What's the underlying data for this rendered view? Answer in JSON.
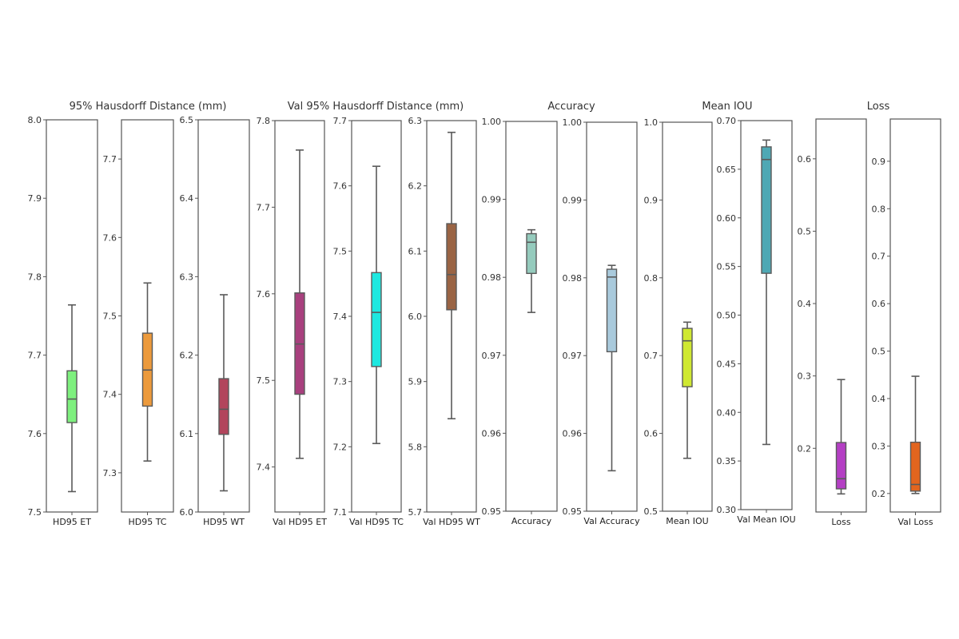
{
  "chart_data": {
    "type": "box",
    "groups": [
      {
        "title": "95% Hausdorff Distance (mm)",
        "panels": [
          0,
          1,
          2
        ]
      },
      {
        "title": "Val 95% Hausdorff Distance (mm)",
        "panels": [
          3,
          4,
          5
        ]
      },
      {
        "title": "Accuracy",
        "panels": [
          6,
          7
        ]
      },
      {
        "title": "Mean IOU",
        "panels": [
          8,
          9
        ]
      },
      {
        "title": "Loss",
        "panels": [
          10,
          11
        ]
      }
    ],
    "panels": [
      {
        "label": "HD95 ET",
        "color": "#7ef07e",
        "ylim": [
          7.5,
          8.0
        ],
        "ticks": [
          "7.5",
          "7.6",
          "7.7",
          "7.8",
          "7.9",
          "8.0"
        ],
        "stats": {
          "whislo": 7.526,
          "q1": 7.614,
          "median": 7.644,
          "q3": 7.68,
          "whishi": 7.764
        }
      },
      {
        "label": "HD95 TC",
        "color": "#ec9a3c",
        "ylim": [
          7.25,
          7.75
        ],
        "ticks": [
          "7.3",
          "7.4",
          "7.5",
          "7.6",
          "7.7"
        ],
        "stats": {
          "whislo": 7.315,
          "q1": 7.385,
          "median": 7.431,
          "q3": 7.478,
          "whishi": 7.542
        }
      },
      {
        "label": "HD95 WT",
        "color": "#b2455c",
        "ylim": [
          6.0,
          6.5
        ],
        "ticks": [
          "6.0",
          "6.1",
          "6.2",
          "6.3",
          "6.4",
          "6.5"
        ],
        "stats": {
          "whislo": 6.027,
          "q1": 6.099,
          "median": 6.131,
          "q3": 6.17,
          "whishi": 6.277
        }
      },
      {
        "label": "Val HD95 ET",
        "color": "#a8407e",
        "ylim": [
          7.348,
          7.8
        ],
        "ticks": [
          "7.4",
          "7.5",
          "7.6",
          "7.7",
          "7.8"
        ],
        "stats": {
          "whislo": 7.41,
          "q1": 7.484,
          "median": 7.542,
          "q3": 7.601,
          "whishi": 7.766
        }
      },
      {
        "label": "Val HD95 TC",
        "color": "#1de8e0",
        "ylim": [
          7.1,
          7.7
        ],
        "ticks": [
          "7.1",
          "7.2",
          "7.3",
          "7.4",
          "7.5",
          "7.6",
          "7.7"
        ],
        "stats": {
          "whislo": 7.205,
          "q1": 7.323,
          "median": 7.406,
          "q3": 7.467,
          "whishi": 7.63
        }
      },
      {
        "label": "Val HD95 WT",
        "color": "#9a6444",
        "ylim": [
          5.7,
          6.3
        ],
        "ticks": [
          "5.7",
          "5.8",
          "5.9",
          "6.0",
          "6.1",
          "6.2",
          "6.3"
        ],
        "stats": {
          "whislo": 5.843,
          "q1": 6.01,
          "median": 6.064,
          "q3": 6.142,
          "whishi": 6.282
        }
      },
      {
        "label": "Accuracy",
        "color": "#95cbbd",
        "ylim": [
          0.95,
          1.0
        ],
        "ticks": [
          "0.95",
          "0.96",
          "0.97",
          "0.98",
          "0.99",
          "1.00"
        ],
        "stats": {
          "whislo": 0.9755,
          "q1": 0.9805,
          "median": 0.9845,
          "q3": 0.9856,
          "whishi": 0.9861
        }
      },
      {
        "label": "Val Accuracy",
        "color": "#a9cadc",
        "ylim": [
          0.95,
          1.0
        ],
        "ticks": [
          "0.95",
          "0.96",
          "0.97",
          "0.98",
          "0.99",
          "1.00"
        ],
        "stats": {
          "whislo": 0.9552,
          "q1": 0.9705,
          "median": 0.9801,
          "q3": 0.9811,
          "whishi": 0.9816
        }
      },
      {
        "label": "Mean IOU",
        "color": "#cfe831",
        "ylim": [
          0.5,
          1.0
        ],
        "ticks": [
          "0.5",
          "0.6",
          "0.7",
          "0.8",
          "0.9",
          "1.0"
        ],
        "stats": {
          "whislo": 0.568,
          "q1": 0.66,
          "median": 0.719,
          "q3": 0.735,
          "whishi": 0.743
        }
      },
      {
        "label": "Val Mean IOU",
        "color": "#4ea8b4",
        "ylim": [
          0.3,
          0.7
        ],
        "ticks": [
          "0.30",
          "0.35",
          "0.40",
          "0.45",
          "0.50",
          "0.55",
          "0.60",
          "0.65",
          "0.70"
        ],
        "stats": {
          "whislo": 0.367,
          "q1": 0.543,
          "median": 0.66,
          "q3": 0.673,
          "whishi": 0.68
        }
      },
      {
        "label": "Loss",
        "color": "#b43fc4",
        "ylim": [
          0.112,
          0.655
        ],
        "ticks": [
          "0.2",
          "0.3",
          "0.4",
          "0.5",
          "0.6"
        ],
        "stats": {
          "whislo": 0.137,
          "q1": 0.144,
          "median": 0.158,
          "q3": 0.208,
          "whishi": 0.295
        }
      },
      {
        "label": "Val Loss",
        "color": "#e2651f",
        "ylim": [
          0.161,
          0.989
        ],
        "ticks": [
          "0.2",
          "0.3",
          "0.4",
          "0.5",
          "0.6",
          "0.7",
          "0.8",
          "0.9"
        ],
        "stats": {
          "whislo": 0.2,
          "q1": 0.205,
          "median": 0.219,
          "q3": 0.308,
          "whishi": 0.447
        }
      }
    ],
    "xlabel": "",
    "ylabel": "",
    "grid": false,
    "legend": "none"
  }
}
